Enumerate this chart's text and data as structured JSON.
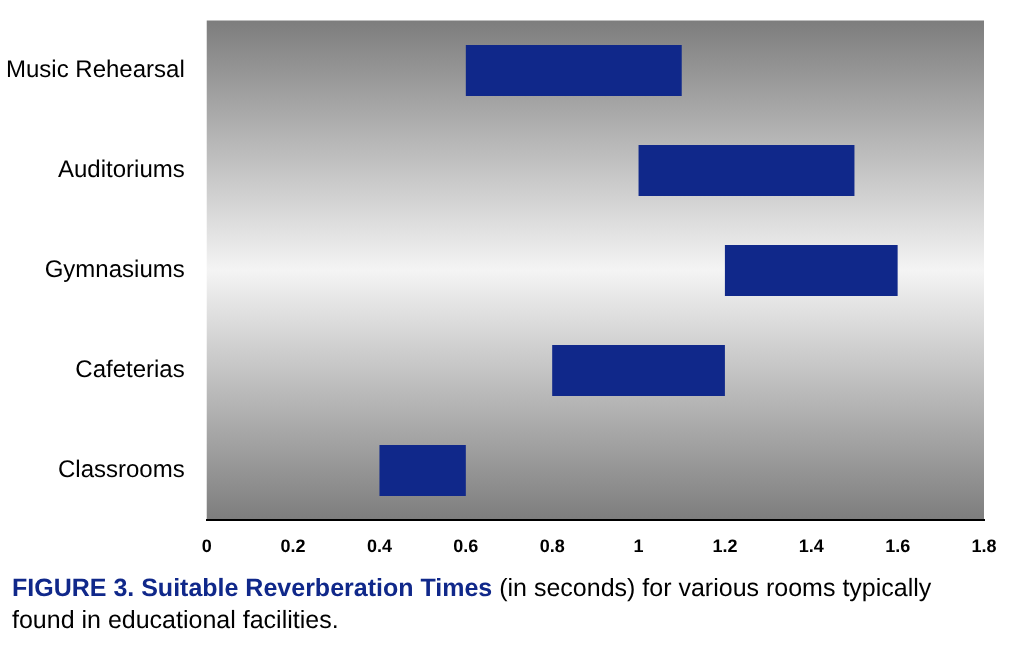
{
  "chart_data": {
    "type": "bar",
    "orientation": "horizontal",
    "title": "FIGURE 3. Suitable Reverberation Times",
    "annotations": [
      "(in seconds) for various rooms typically found in educational facilities."
    ],
    "categories": [
      "Music Rehearsal",
      "Auditoriums",
      "Gymnasiums",
      "Cafeterias",
      "Classrooms"
    ],
    "base": [
      0.6,
      1.0,
      1.2,
      0.8,
      0.4
    ],
    "values": [
      0.5,
      0.5,
      0.4,
      0.4,
      0.2
    ],
    "color": "#10288a",
    "xlim": [
      0,
      1.8
    ],
    "xticks": [
      0,
      0.2,
      0.4,
      0.6,
      0.8,
      1,
      1.2,
      1.4,
      1.6,
      1.8
    ],
    "grid": false,
    "legend": false
  }
}
